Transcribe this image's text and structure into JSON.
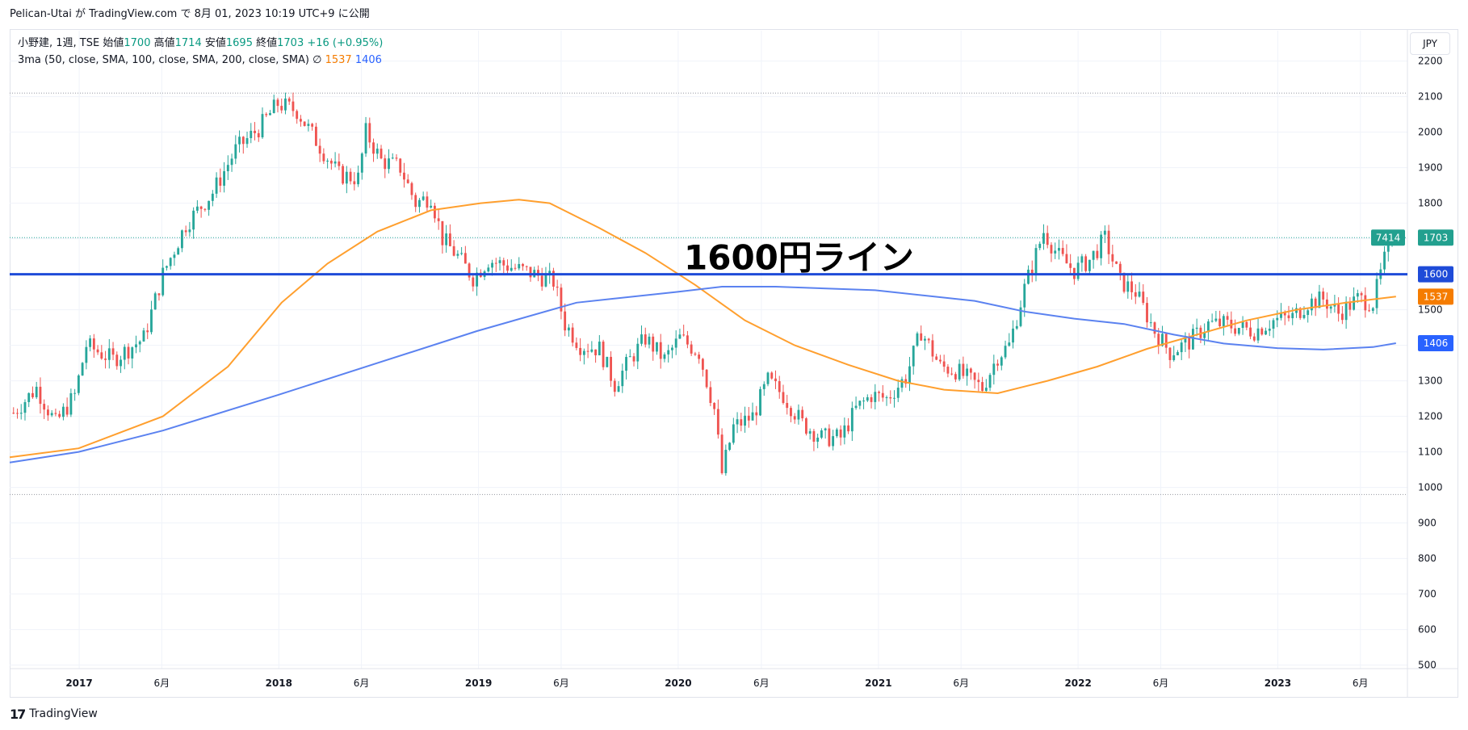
{
  "header": {
    "published_text": "Pelican-Utai が TradingView.com で 8月 01, 2023 10:19 UTC+9 に公開"
  },
  "legend": {
    "symbol_line": "小野建, 1週, TSE",
    "open_label": "始値",
    "open_value": "1700",
    "high_label": "高値",
    "high_value": "1714",
    "low_label": "安値",
    "low_value": "1695",
    "close_label": "終値",
    "close_value": "1703",
    "change": "+16 (+0.95%)",
    "ma_label": "3ma (50, close, SMA, 100, close, SMA, 200, close, SMA)",
    "ma_empty_symbol": "∅",
    "ma_value_orange": "1537",
    "ma_value_blue": "1406"
  },
  "currency_button": "JPY",
  "footer": {
    "brand": "TradingView",
    "logo_text": "17"
  },
  "annotation": {
    "text": "1600円ライン"
  },
  "colors": {
    "up": "#26a69a",
    "down": "#ef5350",
    "ma_orange": "#ff9f2e",
    "ma_blue": "#5b82f0",
    "hline": "#1e4bd8",
    "price_badge": "#22a08f"
  },
  "chart_data": {
    "type": "candlestick",
    "interval": "1 week",
    "ylim": [
      490,
      2240
    ],
    "y_ticks": [
      500,
      600,
      700,
      800,
      900,
      1000,
      1100,
      1200,
      1300,
      1400,
      1500,
      1600,
      1700,
      1800,
      1900,
      2000,
      2100,
      2200
    ],
    "x_range": [
      "2016-08-27",
      "2023-08-26"
    ],
    "x_ticks": [
      {
        "date": "2017-01-01",
        "label": "2017",
        "bold": true
      },
      {
        "date": "2017-06-01",
        "label": "6月",
        "bold": false
      },
      {
        "date": "2018-01-01",
        "label": "2018",
        "bold": true
      },
      {
        "date": "2018-06-01",
        "label": "6月",
        "bold": false
      },
      {
        "date": "2019-01-01",
        "label": "2019",
        "bold": true
      },
      {
        "date": "2019-06-01",
        "label": "6月",
        "bold": false
      },
      {
        "date": "2020-01-01",
        "label": "2020",
        "bold": true
      },
      {
        "date": "2020-06-01",
        "label": "6月",
        "bold": false
      },
      {
        "date": "2021-01-01",
        "label": "2021",
        "bold": true
      },
      {
        "date": "2021-06-01",
        "label": "6月",
        "bold": false
      },
      {
        "date": "2022-01-01",
        "label": "2022",
        "bold": true
      },
      {
        "date": "2022-06-01",
        "label": "6月",
        "bold": false
      },
      {
        "date": "2023-01-01",
        "label": "2023",
        "bold": true
      },
      {
        "date": "2023-06-01",
        "label": "6月",
        "bold": false
      }
    ],
    "price_path": [
      [
        "2016-09-03",
        1210
      ],
      [
        "2016-10-15",
        1280
      ],
      [
        "2016-11-19",
        1180
      ],
      [
        "2016-12-24",
        1260
      ],
      [
        "2017-01-14",
        1400
      ],
      [
        "2017-03-04",
        1360
      ],
      [
        "2017-04-29",
        1420
      ],
      [
        "2017-06-03",
        1600
      ],
      [
        "2017-07-15",
        1740
      ],
      [
        "2017-09-02",
        1830
      ],
      [
        "2017-10-14",
        1950
      ],
      [
        "2017-11-25",
        2010
      ],
      [
        "2017-12-30",
        2080
      ],
      [
        "2018-02-03",
        2060
      ],
      [
        "2018-03-17",
        1960
      ],
      [
        "2018-04-21",
        1880
      ],
      [
        "2018-05-26",
        1870
      ],
      [
        "2018-06-09",
        2000
      ],
      [
        "2018-07-07",
        1920
      ],
      [
        "2018-08-11",
        1900
      ],
      [
        "2018-09-08",
        1800
      ],
      [
        "2018-10-06",
        1820
      ],
      [
        "2018-10-27",
        1700
      ],
      [
        "2018-11-24",
        1650
      ],
      [
        "2018-12-22",
        1590
      ],
      [
        "2019-01-19",
        1640
      ],
      [
        "2019-03-02",
        1620
      ],
      [
        "2019-04-13",
        1600
      ],
      [
        "2019-05-18",
        1580
      ],
      [
        "2019-06-08",
        1460
      ],
      [
        "2019-07-06",
        1400
      ],
      [
        "2019-08-10",
        1390
      ],
      [
        "2019-09-07",
        1290
      ],
      [
        "2019-10-05",
        1360
      ],
      [
        "2019-11-02",
        1420
      ],
      [
        "2019-12-07",
        1360
      ],
      [
        "2020-01-04",
        1420
      ],
      [
        "2020-02-08",
        1380
      ],
      [
        "2020-03-07",
        1220
      ],
      [
        "2020-03-21",
        1040
      ],
      [
        "2020-04-11",
        1170
      ],
      [
        "2020-05-16",
        1200
      ],
      [
        "2020-06-13",
        1300
      ],
      [
        "2020-07-11",
        1260
      ],
      [
        "2020-08-15",
        1180
      ],
      [
        "2020-09-19",
        1140
      ],
      [
        "2020-10-24",
        1140
      ],
      [
        "2020-11-21",
        1220
      ],
      [
        "2020-12-19",
        1260
      ],
      [
        "2021-01-16",
        1250
      ],
      [
        "2021-02-20",
        1310
      ],
      [
        "2021-03-20",
        1440
      ],
      [
        "2021-04-24",
        1340
      ],
      [
        "2021-05-22",
        1330
      ],
      [
        "2021-06-19",
        1300
      ],
      [
        "2021-07-10",
        1280
      ],
      [
        "2021-08-07",
        1370
      ],
      [
        "2021-08-28",
        1400
      ],
      [
        "2021-09-25",
        1560
      ],
      [
        "2021-10-30",
        1720
      ],
      [
        "2021-11-27",
        1650
      ],
      [
        "2021-12-25",
        1610
      ],
      [
        "2022-01-22",
        1640
      ],
      [
        "2022-02-19",
        1700
      ],
      [
        "2022-03-19",
        1580
      ],
      [
        "2022-04-16",
        1550
      ],
      [
        "2022-05-21",
        1440
      ],
      [
        "2022-06-18",
        1380
      ],
      [
        "2022-07-23",
        1410
      ],
      [
        "2022-08-27",
        1460
      ],
      [
        "2022-09-24",
        1460
      ],
      [
        "2022-10-22",
        1450
      ],
      [
        "2022-11-19",
        1440
      ],
      [
        "2022-12-24",
        1470
      ],
      [
        "2023-01-28",
        1480
      ],
      [
        "2023-02-25",
        1520
      ],
      [
        "2023-03-25",
        1530
      ],
      [
        "2023-04-22",
        1490
      ],
      [
        "2023-05-27",
        1530
      ],
      [
        "2023-06-24",
        1520
      ],
      [
        "2023-07-15",
        1640
      ],
      [
        "2023-07-29",
        1703
      ]
    ],
    "series": [
      {
        "name": "SMA 100",
        "color": "#ff9f2e",
        "points": [
          [
            "2016-08-27",
            1085
          ],
          [
            "2016-12-31",
            1110
          ],
          [
            "2017-06-03",
            1200
          ],
          [
            "2017-09-30",
            1340
          ],
          [
            "2018-01-06",
            1520
          ],
          [
            "2018-03-31",
            1630
          ],
          [
            "2018-06-30",
            1720
          ],
          [
            "2018-10-06",
            1780
          ],
          [
            "2019-01-05",
            1800
          ],
          [
            "2019-03-16",
            1810
          ],
          [
            "2019-05-11",
            1800
          ],
          [
            "2019-08-10",
            1730
          ],
          [
            "2019-11-02",
            1660
          ],
          [
            "2020-02-01",
            1570
          ],
          [
            "2020-05-02",
            1470
          ],
          [
            "2020-08-01",
            1400
          ],
          [
            "2020-11-07",
            1345
          ],
          [
            "2021-02-06",
            1300
          ],
          [
            "2021-05-01",
            1275
          ],
          [
            "2021-08-07",
            1265
          ],
          [
            "2021-11-06",
            1300
          ],
          [
            "2022-02-05",
            1340
          ],
          [
            "2022-05-07",
            1390
          ],
          [
            "2022-08-06",
            1430
          ],
          [
            "2022-11-05",
            1470
          ],
          [
            "2023-02-04",
            1500
          ],
          [
            "2023-05-06",
            1520
          ],
          [
            "2023-08-05",
            1537
          ]
        ]
      },
      {
        "name": "SMA 200",
        "color": "#5b82f0",
        "points": [
          [
            "2016-08-27",
            1070
          ],
          [
            "2016-12-31",
            1100
          ],
          [
            "2017-06-03",
            1160
          ],
          [
            "2017-12-30",
            1260
          ],
          [
            "2018-06-30",
            1350
          ],
          [
            "2018-12-29",
            1440
          ],
          [
            "2019-06-29",
            1520
          ],
          [
            "2019-12-28",
            1550
          ],
          [
            "2020-03-21",
            1565
          ],
          [
            "2020-06-27",
            1565
          ],
          [
            "2020-12-26",
            1555
          ],
          [
            "2021-06-26",
            1525
          ],
          [
            "2021-09-25",
            1495
          ],
          [
            "2021-12-25",
            1475
          ],
          [
            "2022-03-26",
            1460
          ],
          [
            "2022-06-25",
            1430
          ],
          [
            "2022-09-24",
            1405
          ],
          [
            "2022-12-31",
            1392
          ],
          [
            "2023-03-25",
            1388
          ],
          [
            "2023-06-24",
            1395
          ],
          [
            "2023-08-05",
            1406
          ]
        ]
      }
    ],
    "horizontal_line": {
      "value": 1600,
      "label": "1600円ライン"
    },
    "dotted_levels": [
      2110,
      980
    ],
    "last_price_line": 1703,
    "price_labels": [
      {
        "value": 1703,
        "text": "1703",
        "extra": "7414",
        "color": "#22a08f"
      },
      {
        "value": 1600,
        "text": "1600",
        "color": "#1e4bd8"
      },
      {
        "value": 1537,
        "text": "1537",
        "color": "#f57c00"
      },
      {
        "value": 1406,
        "text": "1406",
        "color": "#2962ff"
      }
    ]
  }
}
